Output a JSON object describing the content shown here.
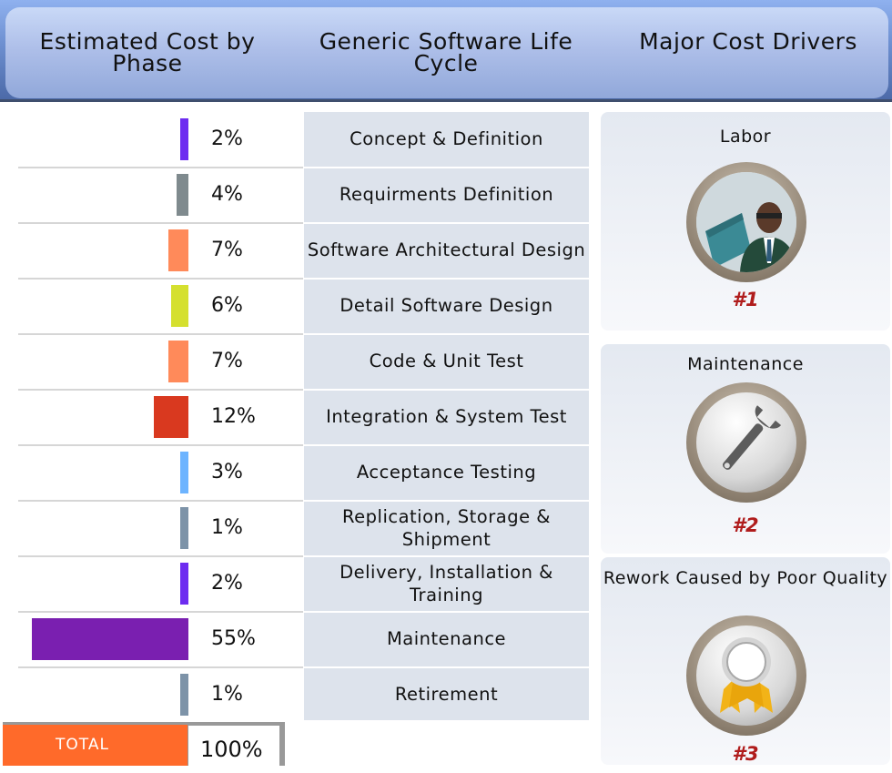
{
  "header": {
    "col1": "Estimated Cost by Phase",
    "col2": "Generic Software Life Cycle",
    "col3": "Major Cost Drivers"
  },
  "chart_data": {
    "type": "bar",
    "orientation": "horizontal",
    "categories": [
      "Concept & Definition",
      "Requirments Definition",
      "Software Architectural Design",
      "Detail Software Design",
      "Code & Unit Test",
      "Integration & System Test",
      "Acceptance Testing",
      "Replication, Storage & Shipment",
      "Delivery, Installation & Training",
      "Maintenance",
      "Retirement"
    ],
    "values": [
      2,
      4,
      7,
      6,
      7,
      12,
      3,
      1,
      2,
      55,
      1
    ],
    "labels": [
      "2%",
      "4%",
      "7%",
      "6%",
      "7%",
      "12%",
      "3%",
      "1%",
      "2%",
      "55%",
      "1%"
    ],
    "colors": [
      "#6d2cf0",
      "#7f8a8e",
      "#ff8a5a",
      "#d5e02f",
      "#ff8a5a",
      "#d9391f",
      "#6db4ff",
      "#7d93a8",
      "#6d2cf0",
      "#7a1fb0",
      "#7d93a8"
    ],
    "total_label": "TOTAL",
    "total_value": "100%"
  },
  "drivers": [
    {
      "title": "Labor",
      "rank": "#1",
      "icon": "person-at-computer-icon"
    },
    {
      "title": "Maintenance",
      "rank": "#2",
      "icon": "wrench-icon"
    },
    {
      "title": "Rework Caused by Poor Quality",
      "rank": "#3",
      "icon": "award-ribbon-icon"
    }
  ]
}
